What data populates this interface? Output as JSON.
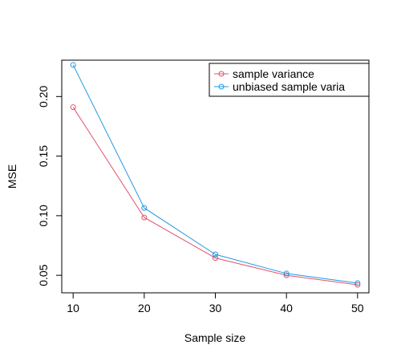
{
  "chart_data": {
    "type": "line",
    "title": "",
    "xlabel": "Sample size",
    "ylabel": "MSE",
    "x": [
      10,
      20,
      30,
      40,
      50
    ],
    "xticks": [
      "10",
      "20",
      "30",
      "40",
      "50"
    ],
    "yticks": [
      "0.05",
      "0.10",
      "0.15",
      "0.20"
    ],
    "xlim": [
      8.4,
      51.6
    ],
    "ylim": [
      0.0353,
      0.2305
    ],
    "grid": false,
    "legend_position": "top-right",
    "series": [
      {
        "name": "sample variance",
        "values": [
          0.191,
          0.0985,
          0.0645,
          0.05,
          0.042
        ],
        "color": "#DF536B",
        "marker": "open-circle"
      },
      {
        "name": "unbiased sample varia",
        "values": [
          0.2265,
          0.1065,
          0.0675,
          0.0515,
          0.0435
        ],
        "color": "#2297E6",
        "marker": "open-circle"
      }
    ]
  }
}
